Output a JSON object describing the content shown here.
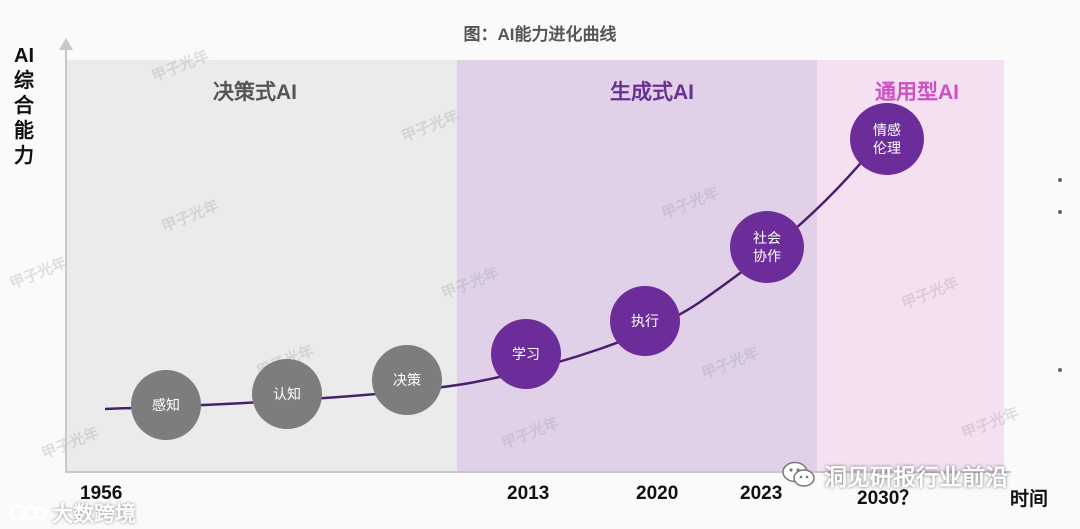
{
  "title": "图：AI能力进化曲线",
  "y_axis_label": "AI综合能力",
  "x_axis_label": "时间",
  "regions": [
    {
      "label": "决策式AI",
      "color": "#ebebeb"
    },
    {
      "label": "生成式AI",
      "color": "#e0d1e9"
    },
    {
      "label": "通用型AI",
      "color": "#f5e0f1"
    }
  ],
  "nodes": [
    {
      "label": "感知",
      "style": "gray"
    },
    {
      "label": "认知",
      "style": "gray"
    },
    {
      "label": "决策",
      "style": "gray"
    },
    {
      "label": "学习",
      "style": "purple"
    },
    {
      "label": "执行",
      "style": "purple"
    },
    {
      "label": "社会\n协作",
      "style": "purple"
    },
    {
      "label": "情感\n伦理",
      "style": "purple"
    }
  ],
  "years": [
    "1956",
    "2013",
    "2020",
    "2023",
    "2030？"
  ],
  "watermark": "甲子光年",
  "footer": {
    "wechat_account": "洞见研报行业前沿",
    "brand": "大数跨境"
  },
  "colors": {
    "curve": "#4a1e6e",
    "purple_node": "#6c2d9b",
    "gray_node": "#7d7d7d",
    "generative_label": "#6a2f95",
    "general_label": "#cf4fc4"
  }
}
